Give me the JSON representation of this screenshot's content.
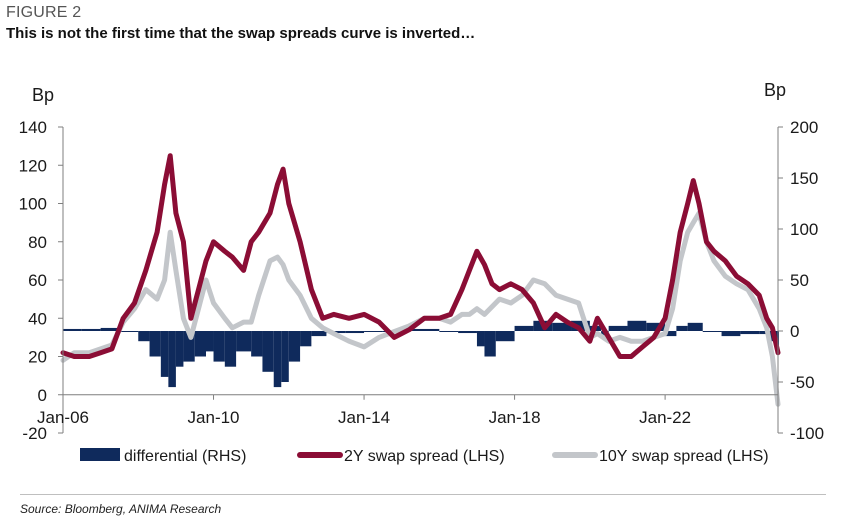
{
  "header": {
    "figure_label": "FIGURE 2",
    "title": "This is not the first time that the swap spreads curve is inverted…"
  },
  "footer": {
    "source": "Source: Bloomberg, ANIMA Research"
  },
  "chart_data": {
    "type": "line",
    "title": "This is not the first time that the swap spreads curve is inverted…",
    "ylabel_left": "Bp",
    "ylabel_right": "Bp",
    "ylim_left": [
      -20,
      140
    ],
    "ylim_right": [
      -100,
      200
    ],
    "yticks_left": [
      -20,
      0,
      20,
      40,
      60,
      80,
      100,
      120,
      140
    ],
    "yticks_right": [
      -100,
      -50,
      0,
      50,
      100,
      150,
      200
    ],
    "xlim": [
      2006.0,
      2025.0
    ],
    "xticks": [
      {
        "label": "Jan-06",
        "x": 2006.0
      },
      {
        "label": "Jan-10",
        "x": 2010.0
      },
      {
        "label": "Jan-14",
        "x": 2014.0
      },
      {
        "label": "Jan-18",
        "x": 2018.0
      },
      {
        "label": "Jan-22",
        "x": 2022.0
      }
    ],
    "grid": false,
    "legend_position": "bottom",
    "colors": {
      "differential": "#0f2a5c",
      "two_year": "#8b0d35",
      "ten_year": "#c3c6ca"
    },
    "series": [
      {
        "name": "differential (RHS)",
        "type": "bar",
        "axis": "right",
        "x": [
          2006.0,
          2006.5,
          2007.0,
          2007.5,
          2008.0,
          2008.3,
          2008.6,
          2008.8,
          2009.0,
          2009.2,
          2009.5,
          2009.8,
          2010.0,
          2010.3,
          2010.6,
          2011.0,
          2011.3,
          2011.6,
          2011.8,
          2012.0,
          2012.3,
          2012.6,
          2013.0,
          2013.5,
          2014.0,
          2014.5,
          2015.0,
          2015.5,
          2016.0,
          2016.5,
          2017.0,
          2017.2,
          2017.5,
          2018.0,
          2018.5,
          2019.0,
          2019.5,
          2020.0,
          2020.3,
          2020.5,
          2021.0,
          2021.5,
          2022.0,
          2022.3,
          2022.6,
          2023.0,
          2023.5,
          2024.0,
          2024.5,
          2024.8,
          2025.0
        ],
        "values": [
          2,
          2,
          3,
          0,
          -10,
          -25,
          -45,
          -55,
          -35,
          -30,
          -25,
          -20,
          -30,
          -35,
          -20,
          -25,
          -40,
          -55,
          -50,
          -30,
          -15,
          -5,
          -2,
          -2,
          0,
          0,
          2,
          2,
          0,
          -2,
          -15,
          -25,
          -10,
          5,
          10,
          8,
          10,
          5,
          -5,
          5,
          10,
          8,
          -5,
          5,
          8,
          0,
          -5,
          -3,
          -3,
          -10,
          -15
        ]
      },
      {
        "name": "2Y swap spread (LHS)",
        "type": "line",
        "axis": "left",
        "x": [
          2006.0,
          2006.3,
          2006.7,
          2007.0,
          2007.3,
          2007.6,
          2007.9,
          2008.2,
          2008.5,
          2008.7,
          2008.85,
          2009.0,
          2009.2,
          2009.4,
          2009.6,
          2009.8,
          2010.0,
          2010.3,
          2010.5,
          2010.8,
          2011.0,
          2011.2,
          2011.5,
          2011.7,
          2011.85,
          2012.0,
          2012.3,
          2012.6,
          2012.9,
          2013.2,
          2013.6,
          2014.0,
          2014.4,
          2014.8,
          2015.2,
          2015.6,
          2016.0,
          2016.3,
          2016.6,
          2016.8,
          2017.0,
          2017.2,
          2017.4,
          2017.6,
          2017.9,
          2018.2,
          2018.5,
          2018.8,
          2019.1,
          2019.4,
          2019.7,
          2020.0,
          2020.2,
          2020.5,
          2020.8,
          2021.1,
          2021.4,
          2021.7,
          2022.0,
          2022.2,
          2022.4,
          2022.6,
          2022.75,
          2022.9,
          2023.1,
          2023.3,
          2023.6,
          2023.9,
          2024.2,
          2024.5,
          2024.7,
          2024.85,
          2025.0
        ],
        "values": [
          22,
          20,
          20,
          22,
          24,
          40,
          48,
          65,
          85,
          110,
          125,
          95,
          80,
          40,
          55,
          70,
          80,
          75,
          72,
          65,
          80,
          85,
          95,
          110,
          118,
          100,
          80,
          55,
          40,
          42,
          40,
          42,
          38,
          30,
          34,
          40,
          40,
          42,
          55,
          65,
          75,
          68,
          58,
          55,
          58,
          55,
          48,
          35,
          42,
          38,
          35,
          28,
          40,
          30,
          20,
          20,
          25,
          30,
          40,
          60,
          85,
          100,
          112,
          100,
          80,
          75,
          70,
          62,
          58,
          52,
          40,
          35,
          22
        ]
      },
      {
        "name": "10Y swap spread (LHS)",
        "type": "line",
        "axis": "left",
        "x": [
          2006.0,
          2006.3,
          2006.7,
          2007.0,
          2007.3,
          2007.6,
          2007.9,
          2008.2,
          2008.5,
          2008.7,
          2008.85,
          2009.0,
          2009.2,
          2009.4,
          2009.6,
          2009.8,
          2010.0,
          2010.3,
          2010.5,
          2010.8,
          2011.0,
          2011.2,
          2011.5,
          2011.7,
          2011.85,
          2012.0,
          2012.3,
          2012.6,
          2012.9,
          2013.2,
          2013.6,
          2014.0,
          2014.4,
          2014.8,
          2015.2,
          2015.6,
          2016.0,
          2016.3,
          2016.6,
          2016.8,
          2017.0,
          2017.2,
          2017.4,
          2017.6,
          2017.9,
          2018.2,
          2018.5,
          2018.8,
          2019.1,
          2019.4,
          2019.7,
          2020.0,
          2020.2,
          2020.5,
          2020.8,
          2021.1,
          2021.4,
          2021.7,
          2022.0,
          2022.2,
          2022.4,
          2022.6,
          2022.75,
          2022.9,
          2023.1,
          2023.3,
          2023.6,
          2023.9,
          2024.2,
          2024.5,
          2024.7,
          2024.85,
          2025.0
        ],
        "values": [
          18,
          22,
          22,
          24,
          26,
          38,
          45,
          55,
          50,
          60,
          85,
          65,
          40,
          30,
          45,
          60,
          48,
          40,
          35,
          38,
          38,
          52,
          70,
          72,
          68,
          60,
          52,
          40,
          35,
          32,
          28,
          25,
          30,
          33,
          36,
          40,
          40,
          38,
          42,
          42,
          45,
          42,
          46,
          50,
          48,
          52,
          60,
          58,
          52,
          50,
          48,
          30,
          32,
          28,
          30,
          28,
          28,
          30,
          32,
          45,
          70,
          85,
          90,
          95,
          80,
          70,
          62,
          58,
          55,
          45,
          35,
          20,
          -5
        ]
      }
    ]
  }
}
